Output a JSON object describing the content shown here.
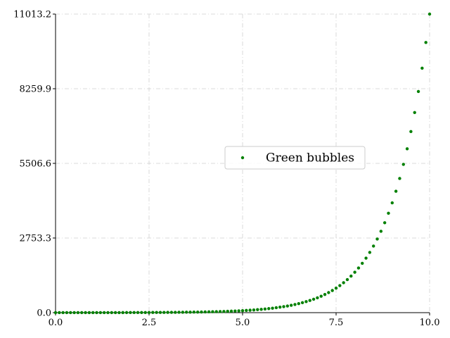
{
  "chart_data": {
    "type": "scatter",
    "series": [
      {
        "name": "Green bubbles",
        "color": "#008000",
        "x": [
          0,
          0.1,
          0.2,
          0.3,
          0.4,
          0.5,
          0.6,
          0.7,
          0.8,
          0.9,
          1,
          1.1,
          1.2,
          1.3,
          1.4,
          1.5,
          1.6,
          1.7,
          1.8,
          1.9,
          2,
          2.1,
          2.2,
          2.3,
          2.4,
          2.5,
          2.6,
          2.7,
          2.8,
          2.9,
          3,
          3.1,
          3.2,
          3.3,
          3.4,
          3.5,
          3.6,
          3.7,
          3.8,
          3.9,
          4,
          4.1,
          4.2,
          4.3,
          4.4,
          4.5,
          4.6,
          4.7,
          4.8,
          4.9,
          5,
          5.1,
          5.2,
          5.3,
          5.4,
          5.5,
          5.6,
          5.7,
          5.8,
          5.9,
          6,
          6.1,
          6.2,
          6.3,
          6.4,
          6.5,
          6.6,
          6.7,
          6.8,
          6.9,
          7,
          7.1,
          7.2,
          7.3,
          7.4,
          7.5,
          7.6,
          7.7,
          7.8,
          7.9,
          8,
          8.1,
          8.2,
          8.3,
          8.4,
          8.5,
          8.6,
          8.7,
          8.8,
          8.9,
          9,
          9.1,
          9.2,
          9.3,
          9.4,
          9.5,
          9.6,
          9.7,
          9.8,
          9.9,
          10
        ],
        "values": [
          0.5,
          0.55,
          0.61,
          0.67,
          0.75,
          0.82,
          0.91,
          1.01,
          1.11,
          1.23,
          1.36,
          1.5,
          1.66,
          1.83,
          2.03,
          2.24,
          2.48,
          2.74,
          3.02,
          3.34,
          3.69,
          4.08,
          4.51,
          4.99,
          5.51,
          6.09,
          6.73,
          7.44,
          8.22,
          9.09,
          10.04,
          11.1,
          12.27,
          13.56,
          14.98,
          16.56,
          18.3,
          20.22,
          22.35,
          24.7,
          27.3,
          30.17,
          33.34,
          36.85,
          40.73,
          45.01,
          49.74,
          54.97,
          60.76,
          67.14,
          74.21,
          82.01,
          90.64,
          100.17,
          110.7,
          122.35,
          135.21,
          149.43,
          165.15,
          182.52,
          201.71,
          222.93,
          246.37,
          272.29,
          300.92,
          332.57,
          367.55,
          406.2,
          448.92,
          496.14,
          548.32,
          605.98,
          669.72,
          740.15,
          817.99,
          904.02,
          999.1,
          1104.17,
          1220.3,
          1348.64,
          1490.48,
          1647.23,
          1820.47,
          2011.94,
          2223.53,
          2457.38,
          2715.83,
          3001.46,
          3317.12,
          3665.99,
          4051.54,
          4477.65,
          4948.56,
          5469.0,
          6044.2,
          6679.86,
          7382.4,
          8158.8,
          9016.87,
          9965.2,
          11013.23
        ]
      }
    ],
    "xlim": [
      0,
      10
    ],
    "xticks": [
      {
        "value": 0,
        "label": "0.0"
      },
      2.5,
      {
        "value": 5,
        "label": "5.0"
      },
      7.5,
      {
        "value": 10,
        "label": "10.0"
      }
    ],
    "ylim": [
      0,
      11013.2
    ],
    "yticks": [
      {
        "value": 0,
        "label": "0.0"
      },
      2753.3,
      5506.6,
      8259.9,
      11013.2
    ],
    "grid": true,
    "legend": "center"
  }
}
